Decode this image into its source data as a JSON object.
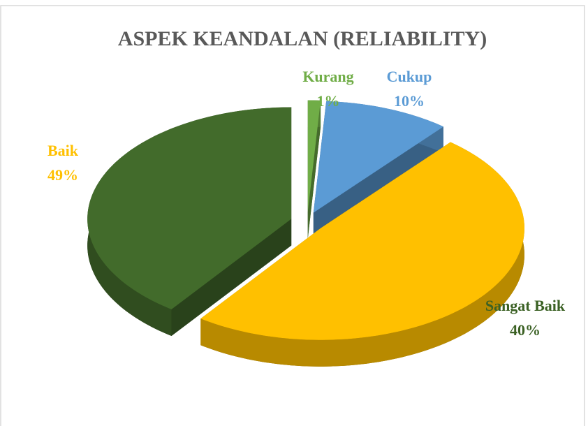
{
  "chart_data": {
    "type": "pie",
    "title": "ASPEK KEANDALAN (RELIABILITY)",
    "categories": [
      "Kurang",
      "Cukup",
      "Baik",
      "Sangat Baik"
    ],
    "values": [
      1,
      10,
      49,
      40
    ],
    "value_labels": [
      "1%",
      "10%",
      "49%",
      "40%"
    ],
    "colors": [
      "#70ad47",
      "#5b9bd5",
      "#ffc000",
      "#426b2b"
    ],
    "label_colors": [
      "#70ad47",
      "#5b9bd5",
      "#ffc000",
      "#3b6124"
    ]
  }
}
